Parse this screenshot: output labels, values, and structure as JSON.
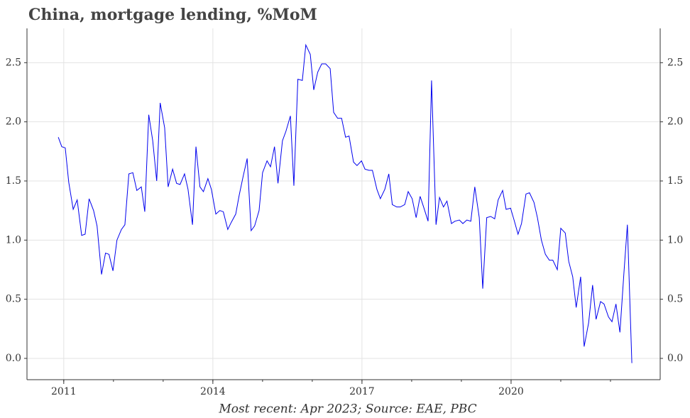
{
  "chart_data": {
    "type": "line",
    "title": "China, mortgage lending, %MoM",
    "source": "Most recent: Apr 2023; Source: EAE, PBC",
    "x": [
      2010.89,
      2010.96,
      2011.03,
      2011.1,
      2011.19,
      2011.27,
      2011.36,
      2011.43,
      2011.51,
      2011.6,
      2011.67,
      2011.76,
      2011.84,
      2011.91,
      2011.99,
      2012.07,
      2012.16,
      2012.23,
      2012.31,
      2012.39,
      2012.47,
      2012.56,
      2012.63,
      2012.71,
      2012.79,
      2012.87,
      2012.94,
      2013.03,
      2013.1,
      2013.19,
      2013.27,
      2013.34,
      2013.43,
      2013.5,
      2013.59,
      2013.66,
      2013.74,
      2013.81,
      2013.9,
      2013.97,
      2014.06,
      2014.14,
      2014.21,
      2014.3,
      2014.37,
      2014.46,
      2014.53,
      2014.61,
      2014.69,
      2014.77,
      2014.84,
      2014.93,
      2015.0,
      2015.09,
      2015.16,
      2015.24,
      2015.31,
      2015.4,
      2015.47,
      2015.56,
      2015.63,
      2015.71,
      2015.8,
      2015.87,
      2015.96,
      2016.03,
      2016.11,
      2016.19,
      2016.27,
      2016.36,
      2016.43,
      2016.51,
      2016.59,
      2016.67,
      2016.74,
      2016.83,
      2016.9,
      2016.99,
      2017.06,
      2017.14,
      2017.21,
      2017.3,
      2017.37,
      2017.46,
      2017.54,
      2017.61,
      2017.7,
      2017.77,
      2017.86,
      2017.93,
      2018.01,
      2018.09,
      2018.17,
      2018.24,
      2018.33,
      2018.4,
      2018.49,
      2018.56,
      2018.64,
      2018.71,
      2018.8,
      2018.87,
      2018.96,
      2019.03,
      2019.11,
      2019.19,
      2019.27,
      2019.36,
      2019.43,
      2019.51,
      2019.59,
      2019.67,
      2019.74,
      2019.83,
      2019.9,
      2019.99,
      2020.06,
      2020.14,
      2020.21,
      2020.3,
      2020.37,
      2020.46,
      2020.53,
      2020.61,
      2020.69,
      2020.77,
      2020.84,
      2020.93,
      2021.0,
      2021.09,
      2021.16,
      2021.24,
      2021.31,
      2021.4,
      2021.47,
      2021.56,
      2021.64,
      2021.71,
      2021.8,
      2021.87,
      2021.96,
      2022.03,
      2022.11,
      2022.19,
      2022.27,
      2022.34,
      2022.43
    ],
    "series": [
      {
        "color": "#0000ee",
        "values": [
          1.87,
          1.79,
          1.78,
          1.49,
          1.26,
          1.34,
          1.04,
          1.05,
          1.35,
          1.25,
          1.12,
          0.71,
          0.89,
          0.88,
          0.74,
          1.0,
          1.09,
          1.13,
          1.56,
          1.57,
          1.42,
          1.45,
          1.24,
          2.06,
          1.84,
          1.5,
          2.16,
          1.95,
          1.45,
          1.6,
          1.48,
          1.47,
          1.56,
          1.43,
          1.13,
          1.79,
          1.45,
          1.41,
          1.52,
          1.43,
          1.22,
          1.25,
          1.24,
          1.09,
          1.15,
          1.22,
          1.38,
          1.54,
          1.69,
          1.08,
          1.12,
          1.25,
          1.57,
          1.67,
          1.62,
          1.79,
          1.48,
          1.84,
          1.92,
          2.05,
          1.46,
          2.36,
          2.35,
          2.65,
          2.57,
          2.27,
          2.42,
          2.49,
          2.49,
          2.45,
          2.08,
          2.03,
          2.03,
          1.87,
          1.88,
          1.66,
          1.63,
          1.67,
          1.6,
          1.59,
          1.59,
          1.43,
          1.35,
          1.43,
          1.56,
          1.3,
          1.28,
          1.28,
          1.3,
          1.41,
          1.35,
          1.19,
          1.37,
          1.28,
          1.16,
          2.35,
          1.13,
          1.36,
          1.28,
          1.33,
          1.14,
          1.16,
          1.17,
          1.14,
          1.17,
          1.16,
          1.45,
          1.19,
          0.59,
          1.19,
          1.2,
          1.18,
          1.34,
          1.42,
          1.26,
          1.27,
          1.17,
          1.05,
          1.14,
          1.39,
          1.4,
          1.32,
          1.19,
          1.0,
          0.88,
          0.83,
          0.83,
          0.75,
          1.1,
          1.06,
          0.82,
          0.69,
          0.43,
          0.69,
          0.1,
          0.3,
          0.62,
          0.33,
          0.48,
          0.46,
          0.35,
          0.31,
          0.46,
          0.22,
          0.72,
          1.13,
          -0.04
        ]
      }
    ],
    "xlim": [
      2010.26,
      2023.0
    ],
    "xticks": [
      2011,
      2014,
      2017,
      2020
    ],
    "xminorticks": [
      2011,
      2012,
      2013,
      2014,
      2015,
      2016,
      2017,
      2018,
      2019,
      2020,
      2021,
      2022
    ],
    "ylim": [
      -0.18,
      2.79
    ],
    "yticks": [
      {
        "value": 0,
        "label": "0.0"
      },
      {
        "value": 0.5,
        "label": "0.5"
      },
      {
        "value": 1,
        "label": "1.0"
      },
      {
        "value": 1.5,
        "label": "1.5"
      },
      {
        "value": 2,
        "label": "2.0"
      },
      {
        "value": 2.5,
        "label": "2.5"
      }
    ],
    "grid": true,
    "right_axis": true
  }
}
